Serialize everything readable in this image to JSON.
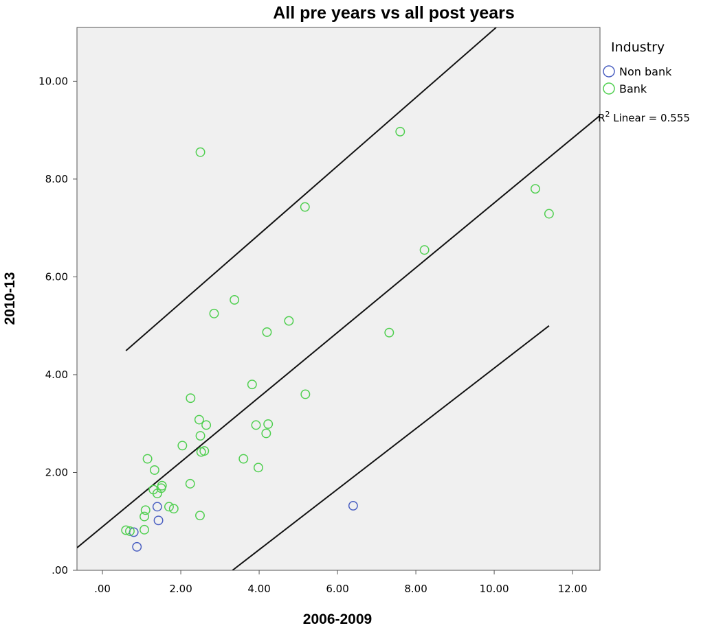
{
  "chart_data": {
    "type": "scatter",
    "title": "All pre years vs all post years",
    "xlabel": "2006-2009",
    "ylabel": "2010-13",
    "xlim": [
      -0.65,
      12.7
    ],
    "ylim": [
      0,
      11.1
    ],
    "xticks": [
      0,
      2,
      4,
      6,
      8,
      10,
      12
    ],
    "xtick_labels": [
      ".00",
      "2.00",
      "4.00",
      "6.00",
      "8.00",
      "10.00",
      "12.00"
    ],
    "yticks": [
      0,
      2,
      4,
      6,
      8,
      10
    ],
    "ytick_labels": [
      ".00",
      "2.00",
      "4.00",
      "6.00",
      "8.00",
      "10.00"
    ],
    "grid": false,
    "legend": {
      "title": "Industry",
      "position": "right",
      "entries": [
        {
          "name": "Non bank",
          "color": "#4a5fc1"
        },
        {
          "name": "Bank",
          "color": "#4fcf4f"
        }
      ]
    },
    "series": [
      {
        "name": "Non bank",
        "color": "#4a5fc1",
        "points": [
          [
            0.8,
            0.78
          ],
          [
            0.88,
            0.48
          ],
          [
            1.4,
            1.3
          ],
          [
            1.43,
            1.02
          ],
          [
            6.4,
            1.32
          ]
        ]
      },
      {
        "name": "Bank",
        "color": "#4fcf4f",
        "points": [
          [
            0.6,
            0.82
          ],
          [
            0.7,
            0.8
          ],
          [
            1.07,
            0.83
          ],
          [
            1.07,
            1.1
          ],
          [
            1.1,
            1.23
          ],
          [
            1.15,
            2.28
          ],
          [
            1.3,
            1.65
          ],
          [
            1.33,
            2.05
          ],
          [
            1.4,
            1.57
          ],
          [
            1.5,
            1.68
          ],
          [
            1.52,
            1.73
          ],
          [
            1.7,
            1.3
          ],
          [
            1.82,
            1.26
          ],
          [
            2.04,
            2.55
          ],
          [
            2.24,
            1.77
          ],
          [
            2.25,
            3.52
          ],
          [
            2.47,
            3.08
          ],
          [
            2.49,
            1.12
          ],
          [
            2.5,
            2.75
          ],
          [
            2.5,
            8.55
          ],
          [
            2.52,
            2.42
          ],
          [
            2.6,
            2.44
          ],
          [
            2.65,
            2.97
          ],
          [
            2.85,
            5.25
          ],
          [
            3.37,
            5.53
          ],
          [
            3.6,
            2.28
          ],
          [
            3.82,
            3.8
          ],
          [
            3.92,
            2.97
          ],
          [
            3.98,
            2.1
          ],
          [
            4.18,
            2.8
          ],
          [
            4.2,
            4.87
          ],
          [
            4.23,
            2.99
          ],
          [
            4.76,
            5.1
          ],
          [
            5.17,
            7.43
          ],
          [
            5.18,
            3.6
          ],
          [
            7.32,
            4.86
          ],
          [
            7.6,
            8.97
          ],
          [
            8.22,
            6.55
          ],
          [
            11.05,
            7.8
          ],
          [
            11.4,
            7.29
          ]
        ]
      }
    ],
    "fit_lines": [
      {
        "role": "upper",
        "x": [
          0.6,
          10.05
        ],
        "y": [
          4.49,
          11.1
        ]
      },
      {
        "role": "linear",
        "x": [
          -0.65,
          12.7
        ],
        "y": [
          0.46,
          9.3
        ]
      },
      {
        "role": "lower",
        "x": [
          3.32,
          11.4
        ],
        "y": [
          0.0,
          5.0
        ]
      }
    ],
    "annotation": {
      "r2_label": "Linear = 0.555"
    }
  }
}
